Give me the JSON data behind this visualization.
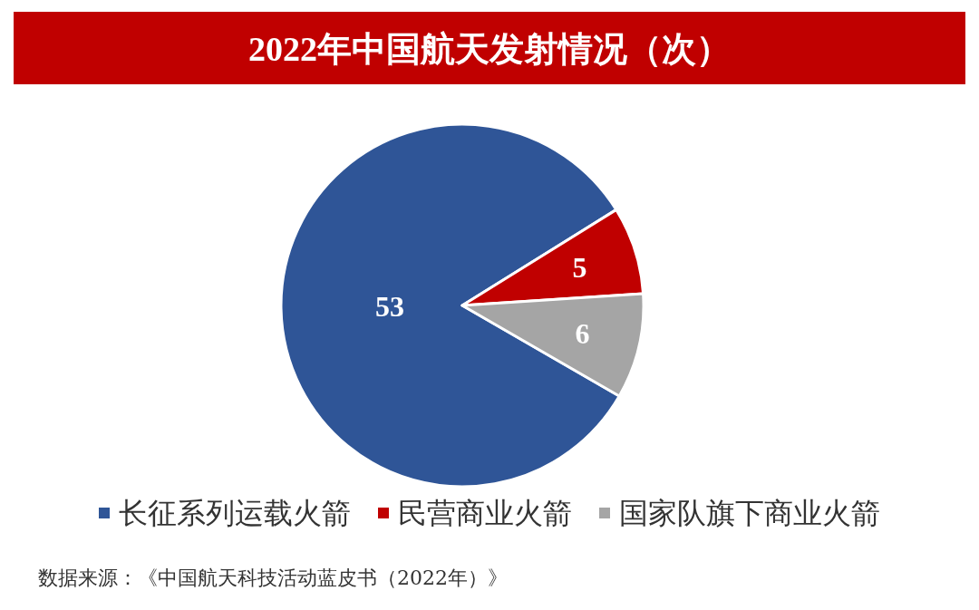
{
  "chart_data": {
    "type": "pie",
    "title": "2022年中国航天发射情况（次）",
    "categories": [
      "长征系列运载火箭",
      "民营商业火箭",
      "国家队旗下商业火箭"
    ],
    "values": [
      53,
      5,
      6
    ],
    "colors": [
      "#2f5597",
      "#c00000",
      "#a5a5a5"
    ],
    "data_labels": true,
    "legend": "bottom",
    "annotations": [
      "数据来源：《中国航天科技活动蓝皮书（2022年）》"
    ]
  }
}
